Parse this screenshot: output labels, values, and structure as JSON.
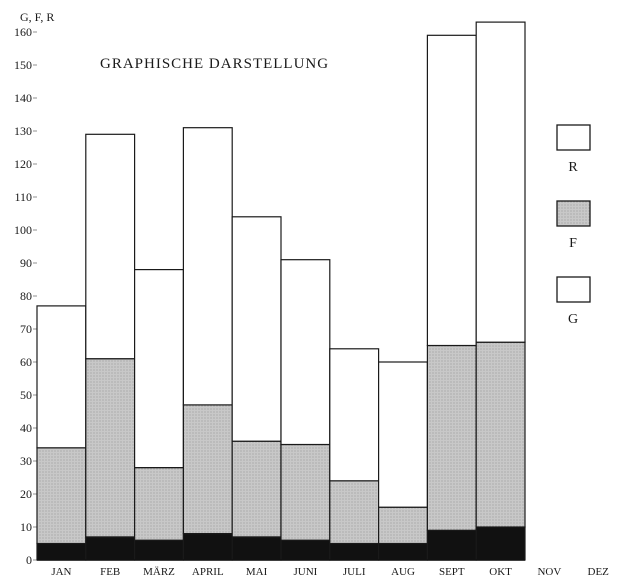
{
  "chart_data": {
    "type": "bar",
    "stacked": true,
    "title": "GRAPHISCHE DARSTELLUNG",
    "ylabel": "G, F, R",
    "xlabel": "",
    "ylim": [
      0,
      165
    ],
    "yticks": [
      0,
      10,
      20,
      30,
      40,
      50,
      60,
      70,
      80,
      90,
      100,
      110,
      120,
      130,
      140,
      150,
      160
    ],
    "categories": [
      "JAN",
      "FEB",
      "MÄRZ",
      "APRIL",
      "MAI",
      "JUNI",
      "JULI",
      "AUG",
      "SEPT",
      "OKT",
      "NOV",
      "DEZ"
    ],
    "series": [
      {
        "name": "G",
        "values": [
          5,
          7,
          6,
          8,
          7,
          6,
          5,
          5,
          9,
          10,
          null,
          null
        ]
      },
      {
        "name": "F",
        "values": [
          29,
          54,
          22,
          39,
          29,
          29,
          19,
          11,
          56,
          56,
          null,
          null
        ]
      },
      {
        "name": "R",
        "values": [
          43,
          68,
          60,
          84,
          68,
          56,
          40,
          44,
          94,
          97,
          null,
          null
        ]
      }
    ],
    "totals": [
      77,
      129,
      88,
      131,
      104,
      91,
      64,
      60,
      159,
      163,
      null,
      null
    ],
    "legend": {
      "position": "right",
      "items": [
        "R",
        "F",
        "G"
      ]
    },
    "colors": {
      "G": "#111111",
      "F": "#c8c8c8",
      "R": "#ffffff",
      "outline": "#1a1a1a"
    },
    "grid": false
  }
}
